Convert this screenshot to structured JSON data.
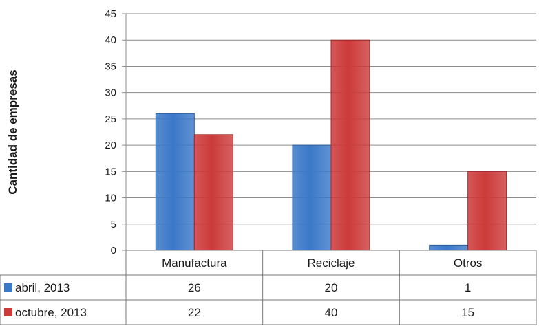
{
  "chart_data": {
    "type": "bar",
    "categories": [
      "Manufactura",
      "Reciclaje",
      "Otros"
    ],
    "series": [
      {
        "name": "abril, 2013",
        "values": [
          26,
          20,
          1
        ],
        "color": "#3a78c8"
      },
      {
        "name": "octubre, 2013",
        "values": [
          22,
          40,
          15
        ],
        "color": "#cc3a3a"
      }
    ],
    "title": "",
    "xlabel": "",
    "ylabel": "Cantidad de empresas",
    "ylim": [
      0,
      45
    ],
    "yticks": [
      0,
      5,
      10,
      15,
      20,
      25,
      30,
      35,
      40,
      45
    ],
    "grid": true,
    "legend": "data-table"
  }
}
